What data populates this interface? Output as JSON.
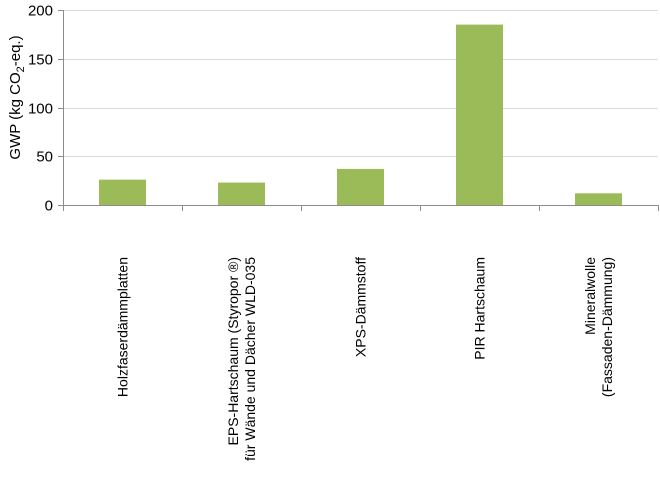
{
  "chart_data": {
    "type": "bar",
    "categories": [
      [
        "Holzfaserdämmplatten"
      ],
      [
        "EPS-Hartschaum (Styropor ®)",
        "für Wände und Dächer WLD-035"
      ],
      [
        "XPS-Dämmstoff"
      ],
      [
        "PIR Hartschaum"
      ],
      [
        "Mineralwolle",
        "(Fassaden-Dämmung)"
      ]
    ],
    "values": [
      26,
      23,
      37,
      185,
      12
    ],
    "ylabel": {
      "prefix": "GWP (kg CO",
      "subscript": "2",
      "suffix": "-eq.)"
    },
    "ylim": [
      0,
      200
    ],
    "yticks": [
      "0",
      "50",
      "100",
      "150",
      "200"
    ],
    "grid": true,
    "bar_color": "#9bbb59"
  }
}
